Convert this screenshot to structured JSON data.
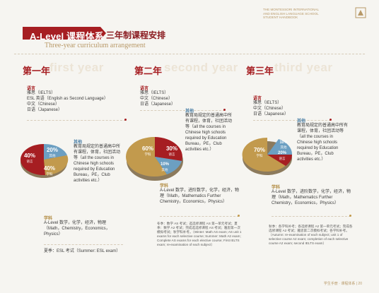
{
  "header": {
    "logo_lines": [
      "THE MONTESSORI INTERNATIONAL",
      "AND ENGLISH LANGUAGE SCHOOL",
      "STUDENT HANDBOOK"
    ],
    "title_main": "A-Level 课程体系",
    "title_sub_cn": "三年制课程安排",
    "title_en": "Three-year curriculum arrangement"
  },
  "years": [
    {
      "label": "第一年",
      "ghost": "first year",
      "language_head": "语言",
      "language_items": [
        "雅思（IELTS）",
        "ESL 英语（English as Second Language）",
        "中文（Chinese）",
        "日语（Japanese）"
      ],
      "other_head": "其他",
      "other_text": "教育局规定的普通高中所有课程，体育，社团活动等（all the courses in Chinese high schools required by Education Bureau，PE，Club activities etc.）",
      "subject_head": "学科",
      "subject_text": "A-Level 数学，化学，经济，物理（Math，Chemistry，Economics，Physics）",
      "exam_text": "夏季：ESL 考试（Summer: ESL exam）",
      "slices": [
        {
          "pct": "40%",
          "name": "语言",
          "value": 40,
          "color": "#a61e22"
        },
        {
          "pct": "20%",
          "name": "其他",
          "value": 20,
          "color": "#6c9fc2"
        },
        {
          "pct": "40%",
          "name": "学科",
          "value": 40,
          "color": "#c29a4d"
        }
      ]
    },
    {
      "label": "第二年",
      "ghost": "second year",
      "language_head": "语言",
      "language_items": [
        "雅思（IELTS）",
        "中文（Chinese）",
        "日语（Japanese）"
      ],
      "other_head": "其他",
      "other_text": "教育局规定的普通高中所有课程，体育，社团活动等（all the courses in Chinese high schools required by Education Bureau，PE，Club activities etc.）",
      "subject_head": "学科",
      "subject_text": "A-Level 数学，进阶数学，化学，经济，物理（Math，Mathematics Further Chemistry，Economics，Physics）",
      "exam_text": "冬季：数学 AS 考试；选选修课程 AS 第一单元考试；夏季：数学 A2 考试；完成选选修课程 AS 考试；雅思第一次模拟考试；秋学科补考。（Winter: Math AS exam; AS unit 1 exams for each selective course; Summer: Math A2 exam; Complete AS exams for each elective course; First IELTS exam; re-examination of each subject）",
      "slices": [
        {
          "pct": "60%",
          "name": "学科",
          "value": 60,
          "color": "#c29a4d"
        },
        {
          "pct": "30%",
          "name": "语言",
          "value": 30,
          "color": "#a61e22"
        },
        {
          "pct": "10%",
          "name": "其他",
          "value": 10,
          "color": "#6c9fc2"
        }
      ]
    },
    {
      "label": "第三年",
      "ghost": "third year",
      "language_head": "语言",
      "language_items": [
        "雅思（IELTS）",
        "中文（Chinese）",
        "日语（Japanese）"
      ],
      "other_head": "其他",
      "other_text": "教育局规定的普通高中所有课程，体育，社团活动等（all the courses in Chinese high schools required by Education Bureau，PE，Club activities etc.）",
      "subject_head": "学科",
      "subject_text": "A-Level 数学，进阶数学，化学，经济，物理（Math，Mathematics Further Chemistry，Economics，Physics）",
      "exam_text": "秋季：各学科补考；各选修课程 A2 第一单元考试；完成各选修课程 A2 考试；雅思第二次模拟考试；各学科补考。（Autumn: re-examination of each subject; unit 1 of selective course A2 exam; completion of each selective course A2 exam; second IELTS exam）",
      "slices": [
        {
          "pct": "70%",
          "name": "学科",
          "value": 70,
          "color": "#c29a4d"
        },
        {
          "pct": "20%",
          "name": "语言",
          "value": 20,
          "color": "#a61e22"
        },
        {
          "pct": "10%",
          "name": "其他",
          "value": 10,
          "color": "#6c9fc2"
        }
      ]
    }
  ],
  "footer": "学生手册 · 课程体系 | 20"
}
